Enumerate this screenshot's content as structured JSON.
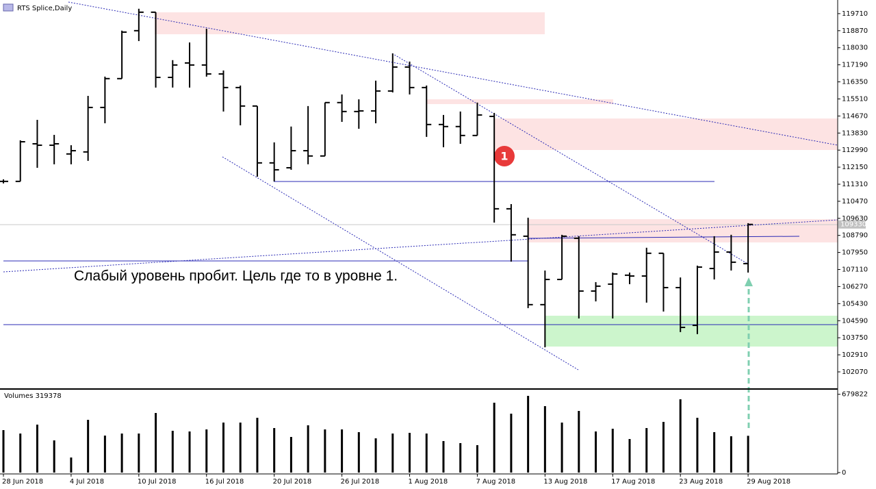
{
  "chart_data": [
    {
      "type": "ohlc",
      "title": "RTS Splice,Daily",
      "categories": [
        "28 Jun 2018",
        null,
        null,
        null,
        "4 Jul 2018",
        null,
        null,
        null,
        "10 Jul 2018",
        null,
        null,
        null,
        "16 Jul 2018",
        null,
        null,
        null,
        "20 Jul 2018",
        null,
        null,
        null,
        "26 Jul 2018",
        null,
        null,
        null,
        "1 Aug 2018",
        null,
        null,
        null,
        "7 Aug 2018",
        null,
        null,
        null,
        "13 Aug 2018",
        null,
        null,
        null,
        "17 Aug 2018",
        null,
        null,
        null,
        "23 Aug 2018",
        null,
        null,
        null,
        "29 Aug 2018"
      ],
      "open": [
        111450,
        111450,
        113300,
        113230,
        112800,
        112900,
        115090,
        116510,
        118870,
        119780,
        116570,
        117280,
        117180,
        116740,
        116070,
        115160,
        112360,
        112120,
        112960,
        112700,
        115330,
        114890,
        114920,
        115900,
        117080,
        116070,
        114250,
        114150,
        113710,
        114650,
        110100,
        108750,
        105380,
        106620,
        108650,
        106050,
        106390,
        106830,
        106790,
        107910,
        106220,
        104360,
        107160,
        107970,
        107400
      ],
      "high": [
        111550,
        113470,
        114480,
        113740,
        113230,
        115660,
        116610,
        118870,
        119950,
        119780,
        117420,
        118290,
        118970,
        116910,
        116170,
        115160,
        113370,
        114150,
        115160,
        115330,
        115730,
        115490,
        116410,
        117750,
        117350,
        116170,
        114720,
        114890,
        115330,
        114820,
        110330,
        109660,
        107060,
        108820,
        108750,
        106490,
        106960,
        106960,
        108180,
        107910,
        106720,
        107300,
        108750,
        108820,
        109390
      ],
      "low": [
        111350,
        111450,
        112120,
        112290,
        112290,
        112460,
        114310,
        116510,
        118360,
        116070,
        116070,
        116070,
        116610,
        114890,
        114210,
        111680,
        111450,
        112020,
        112290,
        112700,
        114380,
        114040,
        114310,
        115830,
        115730,
        113640,
        113130,
        113300,
        113710,
        109420,
        107500,
        105210,
        103280,
        106620,
        104700,
        105540,
        104700,
        106390,
        105480,
        105040,
        104030,
        103930,
        106620,
        107060,
        106960
      ],
      "close": [
        111450,
        113400,
        113230,
        113300,
        112960,
        115090,
        116510,
        118800,
        119780,
        116570,
        117180,
        117180,
        116740,
        116070,
        115160,
        112360,
        112020,
        112960,
        112700,
        115330,
        114890,
        114920,
        115900,
        117080,
        116070,
        114250,
        114150,
        113710,
        114720,
        110100,
        108820,
        105380,
        106620,
        108750,
        106050,
        106290,
        106890,
        106790,
        107910,
        106220,
        104260,
        107230,
        107970,
        107470,
        109330
      ],
      "last_price": 109330,
      "color": "#000000",
      "ylim": [
        101260,
        120280
      ],
      "yticks": [
        119710,
        118870,
        118030,
        117190,
        116350,
        115510,
        114670,
        113830,
        112990,
        112150,
        111310,
        110470,
        109630,
        108790,
        107950,
        107110,
        106270,
        105430,
        104590,
        103750,
        102910,
        102070
      ],
      "annotations": [
        "Слабый уровень пробит. Цель где то в уровне 1.",
        "1"
      ]
    },
    {
      "type": "bar",
      "title": "Volumes 319378",
      "values": [
        368800,
        339000,
        416400,
        279600,
        130900,
        458000,
        321200,
        339000,
        339000,
        517500,
        362800,
        356900,
        374700,
        434200,
        434200,
        475800,
        386600,
        309300,
        410400,
        374700,
        374700,
        350900,
        297400,
        339000,
        345000,
        339000,
        273600,
        255800,
        237900,
        606700,
        511500,
        666200,
        577000,
        434200,
        535300,
        356900,
        380700,
        291500,
        386600,
        440200,
        636400,
        475800,
        350900,
        315200,
        319378
      ],
      "color": "#000000",
      "ylim": [
        0,
        690000
      ],
      "yticks": [
        679822,
        0
      ]
    }
  ]
}
